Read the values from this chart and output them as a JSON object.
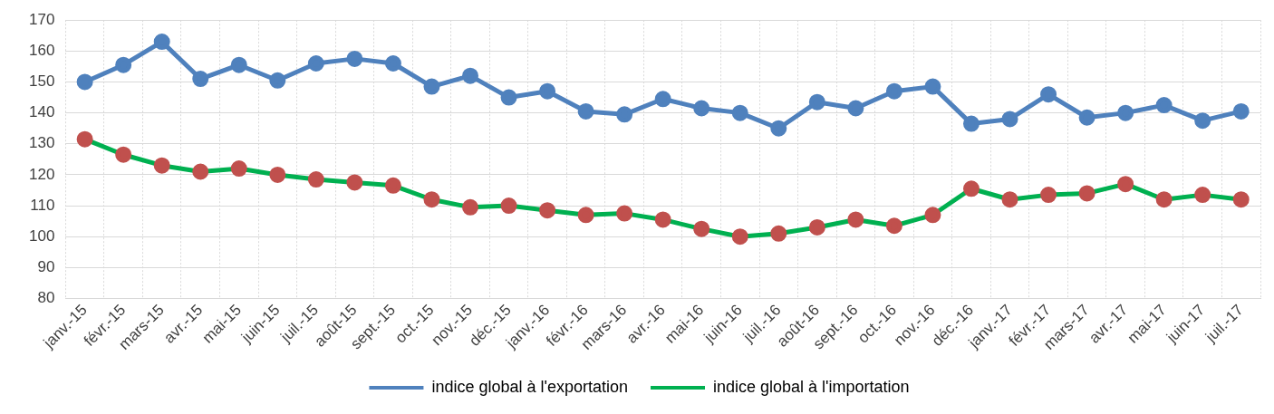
{
  "chart_data": {
    "type": "line",
    "categories": [
      "janv.-15",
      "févr.-15",
      "mars-15",
      "avr.-15",
      "mai-15",
      "juin-15",
      "juil.-15",
      "août-15",
      "sept.-15",
      "oct.-15",
      "nov.-15",
      "déc.-15",
      "janv.-16",
      "févr.-16",
      "mars-16",
      "avr.-16",
      "mai-16",
      "juin-16",
      "juil.-16",
      "août-16",
      "sept.-16",
      "oct.-16",
      "nov.-16",
      "déc.-16",
      "janv.-17",
      "févr.-17",
      "mars-17",
      "avr.-17",
      "mai-17",
      "juin-17",
      "juil.-17"
    ],
    "series": [
      {
        "name": "indice global à l'exportation",
        "color": "#4f81bd",
        "values": [
          150,
          155.5,
          163,
          151,
          155.5,
          150.5,
          156,
          157.5,
          156,
          148.5,
          152,
          145,
          147,
          140.5,
          139.5,
          144.5,
          141.5,
          140,
          135,
          143.5,
          141.5,
          147,
          148.5,
          136.5,
          138,
          146,
          138.5,
          140,
          142.5,
          137.5,
          140.5
        ]
      },
      {
        "name": "indice global à l'importation",
        "color": "#00b050",
        "colors": [
          "#c0504d",
          "#c0504d",
          "#c0504d",
          "#c0504d",
          "#c0504d",
          "#c0504d",
          "#c0504d",
          "#c0504d",
          "#c0504d",
          "#c0504d",
          "#c0504d",
          "#c0504d",
          "#c0504d",
          "#c0504d",
          "#c0504d",
          "#c0504d",
          "#c0504d",
          "#c0504d",
          "#c0504d",
          "#c0504d",
          "#c0504d",
          "#c0504d",
          "#c0504d",
          "#c0504d",
          "#c0504d",
          "#c0504d",
          "#c0504d",
          "#c0504d",
          "#c0504d",
          "#c0504d",
          "#c0504d"
        ],
        "values": [
          131.5,
          126.5,
          123,
          121,
          122,
          120,
          118.5,
          117.5,
          116.5,
          112,
          109.5,
          110,
          108.5,
          107,
          107.5,
          105.5,
          102.5,
          100,
          101,
          103,
          105.5,
          103.5,
          107,
          115.5,
          112,
          113.5,
          114,
          117,
          112,
          113.5,
          112
        ]
      }
    ],
    "ylim": [
      80,
      170
    ],
    "yticks": [
      80,
      90,
      100,
      110,
      120,
      130,
      140,
      150,
      160,
      170
    ],
    "grid": true,
    "legend": "bottom",
    "marker": "circle",
    "line_style": "solid"
  }
}
